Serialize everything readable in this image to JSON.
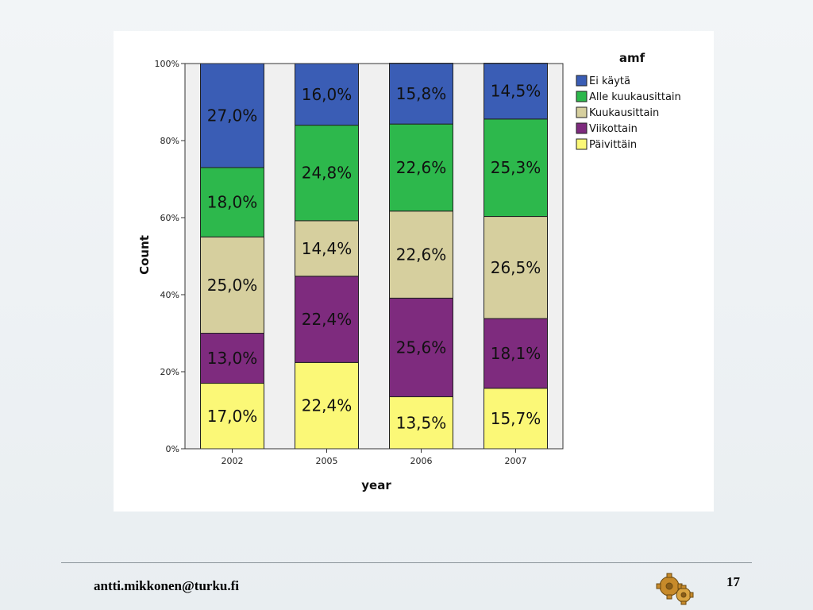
{
  "chart_data": {
    "type": "bar",
    "stacked": true,
    "xlabel": "year",
    "ylabel": "Count",
    "ylim": [
      0,
      100
    ],
    "yticks": [
      "0%",
      "20%",
      "40%",
      "60%",
      "80%",
      "100%"
    ],
    "categories": [
      "2002",
      "2005",
      "2006",
      "2007"
    ],
    "legend_title": "amf",
    "legend_position": "right",
    "series": [
      {
        "name": "Päivittäin",
        "color": "#fbf877",
        "values": [
          17.0,
          22.4,
          13.5,
          15.7
        ],
        "labels": [
          "17,0%",
          "22,4%",
          "13,5%",
          "15,7%"
        ]
      },
      {
        "name": "Viikottain",
        "color": "#7e2b7e",
        "values": [
          13.0,
          22.4,
          25.6,
          18.1
        ],
        "labels": [
          "13,0%",
          "22,4%",
          "25,6%",
          "18,1%"
        ]
      },
      {
        "name": "Kuukausittain",
        "color": "#d6cf9e",
        "values": [
          25.0,
          14.4,
          22.6,
          26.5
        ],
        "labels": [
          "25,0%",
          "14,4%",
          "22,6%",
          "26,5%"
        ]
      },
      {
        "name": "Alle kuukausittain",
        "color": "#2db84c",
        "values": [
          18.0,
          24.8,
          22.6,
          25.3
        ],
        "labels": [
          "18,0%",
          "24,8%",
          "22,6%",
          "25,3%"
        ]
      },
      {
        "name": "Ei käytä",
        "color": "#3a5db5",
        "values": [
          27.0,
          16.0,
          15.8,
          14.5
        ],
        "labels": [
          "27,0%",
          "16,0%",
          "15,8%",
          "14,5%"
        ]
      }
    ],
    "legend_order": [
      "Ei käytä",
      "Alle kuukausittain",
      "Kuukausittain",
      "Viikottain",
      "Päivittäin"
    ],
    "plot_background": "#f0f0f0"
  },
  "footer": {
    "email": "antti.mikkonen@turku.fi",
    "page_number": "17",
    "logo_icon": "gears-icon"
  }
}
